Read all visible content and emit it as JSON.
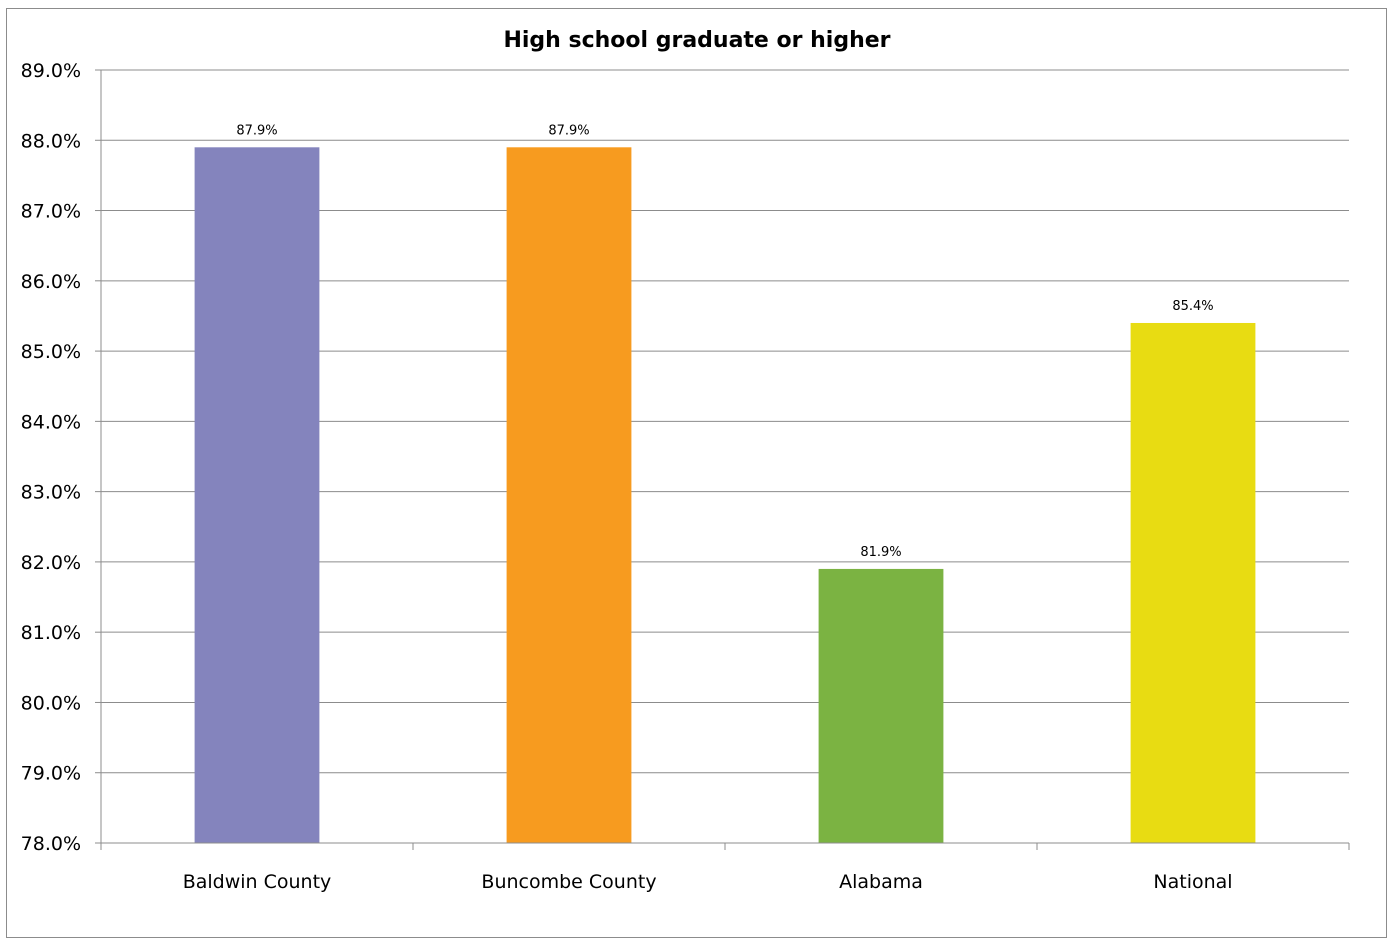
{
  "chart_data": {
    "type": "bar",
    "title": "High school graduate or higher",
    "xlabel": "",
    "ylabel": "",
    "categories": [
      "Baldwin County",
      "Buncombe County",
      "Alabama",
      "National"
    ],
    "values": [
      87.9,
      87.9,
      81.9,
      85.4
    ],
    "data_labels": [
      "87.9%",
      "87.9%",
      "81.9%",
      "85.4%"
    ],
    "bar_colors": [
      "#8484bd",
      "#f79b1f",
      "#7bb342",
      "#e8dc12"
    ],
    "ylim": [
      78.0,
      89.0
    ],
    "yticks": [
      78.0,
      79.0,
      80.0,
      81.0,
      82.0,
      83.0,
      84.0,
      85.0,
      86.0,
      87.0,
      88.0,
      89.0
    ],
    "ytick_labels": [
      "78.0%",
      "79.0%",
      "80.0%",
      "81.0%",
      "82.0%",
      "83.0%",
      "84.0%",
      "85.0%",
      "86.0%",
      "87.0%",
      "88.0%",
      "89.0%"
    ],
    "grid": true,
    "legend": "none"
  }
}
